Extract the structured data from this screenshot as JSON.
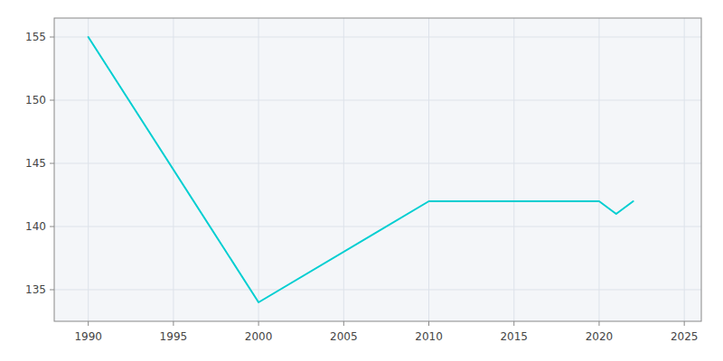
{
  "chart_data": {
    "type": "line",
    "x": [
      1990,
      2000,
      2010,
      2020,
      2021,
      2022
    ],
    "values": [
      155,
      134,
      142,
      142,
      141,
      142
    ],
    "color": "#00CED1",
    "xlim": [
      1988,
      2026
    ],
    "ylim": [
      132.5,
      156.5
    ],
    "xticks": [
      1990,
      1995,
      2000,
      2005,
      2010,
      2015,
      2020,
      2025
    ],
    "yticks": [
      135,
      140,
      145,
      150,
      155
    ],
    "grid": true
  }
}
